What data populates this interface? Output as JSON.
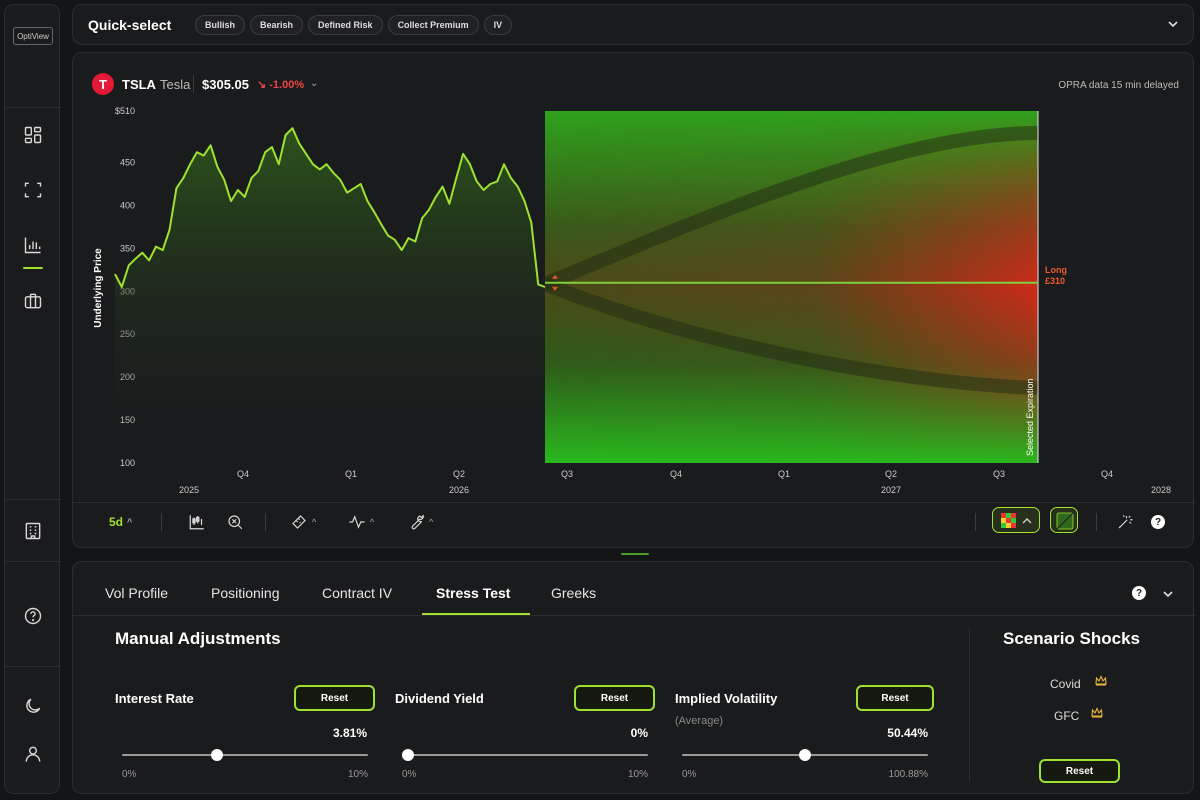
{
  "app": {
    "logo": "OptiView"
  },
  "sidebar": {
    "icons": [
      "dashboard-icon",
      "scan-icon",
      "chart-icon",
      "briefcase-icon",
      "building-icon",
      "help-icon",
      "moon-icon",
      "user-icon"
    ]
  },
  "quick_select": {
    "title": "Quick-select",
    "chips": [
      "Bullish",
      "Bearish",
      "Defined Risk",
      "Collect Premium",
      "IV"
    ]
  },
  "ticker": {
    "symbol": "TSLA",
    "name": "Tesla",
    "price": "$305.05",
    "change": "↘ -1.00%",
    "delay_note": "OPRA data 15 min delayed"
  },
  "chart": {
    "y_label": "Underlying Price",
    "y_ticks": [
      "$510",
      "450",
      "400",
      "350",
      "300",
      "250",
      "200",
      "150",
      "100"
    ],
    "x_ticks": [
      "Q4",
      "Q1",
      "Q2",
      "Q3",
      "Q4",
      "Q1",
      "Q2",
      "Q3",
      "Q4"
    ],
    "years": [
      "2025",
      "2026",
      "2027",
      "2028"
    ],
    "expiration_label": "Selected Expiration",
    "position_label_1": "Long",
    "position_label_2": "£310",
    "colors": {
      "line": "#9fe12f",
      "profit": "#22c022",
      "loss": "#d42a1a"
    }
  },
  "chart_data": {
    "type": "line",
    "ylabel": "Underlying Price",
    "ylim": [
      100,
      510
    ],
    "strike": 310,
    "series": [
      {
        "values": [
          320,
          305,
          330,
          338,
          345,
          336,
          352,
          348,
          372,
          420,
          432,
          448,
          462,
          458,
          470,
          445,
          430,
          405,
          418,
          410,
          432,
          440,
          462,
          468,
          448,
          482,
          490,
          472,
          460,
          448,
          442,
          448,
          438,
          430,
          415,
          420,
          425,
          405,
          392,
          378,
          365,
          360,
          348,
          362,
          358,
          385,
          395,
          410,
          422,
          402,
          432,
          460,
          448,
          428,
          418,
          425,
          428,
          448,
          432,
          422,
          405,
          380,
          308,
          305
        ]
      }
    ]
  },
  "toolbar": {
    "interval": "5d",
    "icons": [
      "candles-icon",
      "zoom-icon",
      "ruler-icon",
      "pulse-icon",
      "wrench-icon",
      "heatmap-icon",
      "panel-icon",
      "magic-wand-icon",
      "help-icon"
    ]
  },
  "tabs": [
    "Vol Profile",
    "Positioning",
    "Contract IV",
    "Stress Test",
    "Greeks"
  ],
  "manual": {
    "title": "Manual Adjustments",
    "reset_label": "Reset",
    "interest": {
      "label": "Interest Rate",
      "value": "3.81%",
      "min": "0%",
      "max": "10%",
      "fraction": 0.381
    },
    "dividend": {
      "label": "Dividend Yield",
      "value": "0%",
      "min": "0%",
      "max": "10%",
      "fraction": 0.0
    },
    "iv": {
      "label": "Implied Volatility",
      "sub": "(Average)",
      "value": "50.44%",
      "min": "0%",
      "max": "100.88%",
      "fraction": 0.5
    }
  },
  "scenario": {
    "title": "Scenario Shocks",
    "items": [
      "Covid",
      "GFC"
    ],
    "reset_label": "Reset"
  }
}
